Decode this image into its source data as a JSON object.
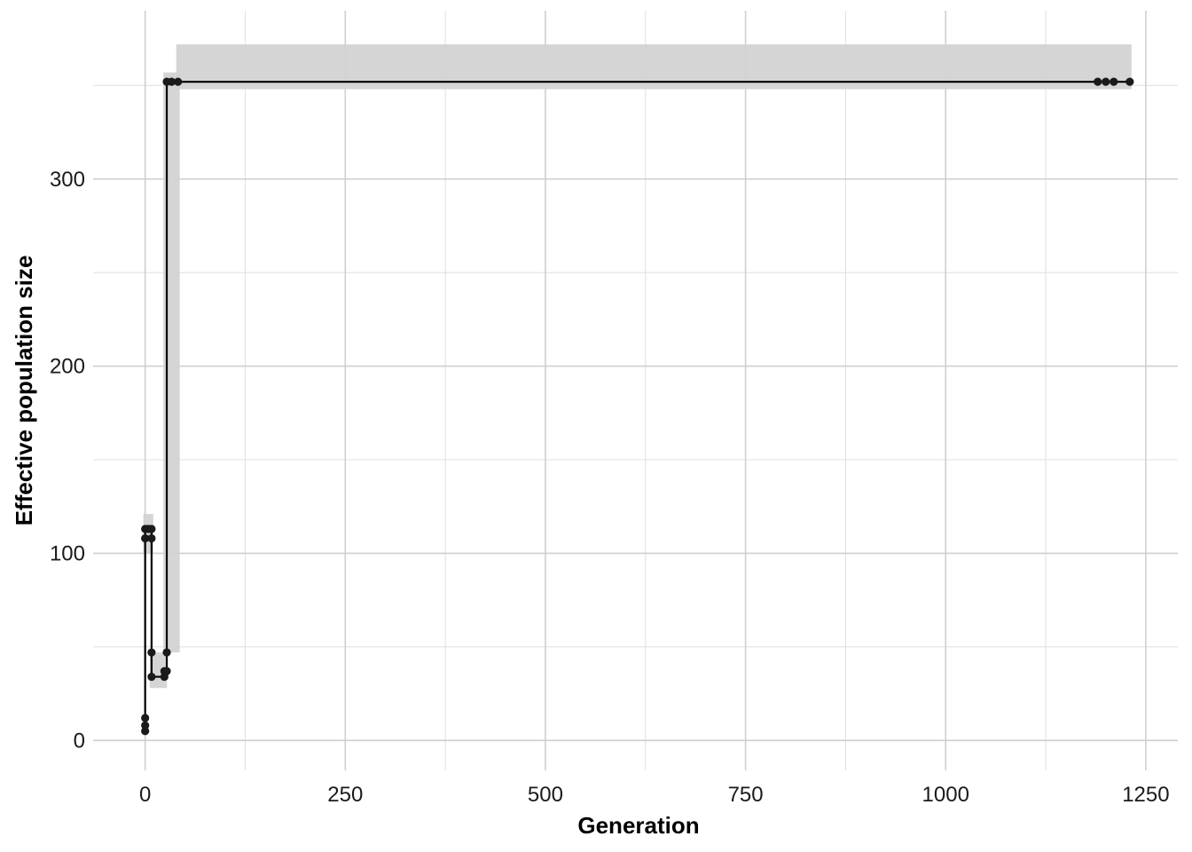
{
  "chart_data": {
    "type": "line",
    "title": "",
    "xlabel": "Generation",
    "ylabel": "Effective population size",
    "xlim": [
      -65,
      1290
    ],
    "ylim": [
      -16,
      390
    ],
    "x_ticks": [
      0,
      250,
      500,
      750,
      1000,
      1250
    ],
    "x_tick_labels": [
      "0",
      "250",
      "500",
      "750",
      "1000",
      "1250"
    ],
    "y_ticks": [
      0,
      100,
      200,
      300
    ],
    "y_tick_labels": [
      "0",
      "100",
      "200",
      "300"
    ],
    "grid": true,
    "legend": "none",
    "colors": {
      "line": "#000000",
      "points": "#1a1a1a",
      "ribbon": "#d3d3d3"
    },
    "ribbon": [
      {
        "x_start": 0,
        "x_end": 8,
        "lower": 100,
        "upper": 121
      },
      {
        "x_start": 8,
        "x_end": 25,
        "lower": 28,
        "upper": 47
      },
      {
        "x_start": 25,
        "x_end": 41,
        "lower": 47,
        "upper": 357
      },
      {
        "x_start": 41,
        "x_end": 1230,
        "lower": 348,
        "upper": 372
      }
    ],
    "series": [
      {
        "points": [
          {
            "x": 0,
            "y": 5
          },
          {
            "x": 0,
            "y": 8
          },
          {
            "x": 0,
            "y": 12
          },
          {
            "x": 0,
            "y": 108
          },
          {
            "x": 0,
            "y": 113
          },
          {
            "x": 4,
            "y": 113
          },
          {
            "x": 8,
            "y": 113
          },
          {
            "x": 8,
            "y": 108
          },
          {
            "x": 8,
            "y": 47
          },
          {
            "x": 8,
            "y": 34
          },
          {
            "x": 24,
            "y": 34
          },
          {
            "x": 24,
            "y": 37
          },
          {
            "x": 27,
            "y": 37
          },
          {
            "x": 27,
            "y": 47
          },
          {
            "x": 27,
            "y": 352
          },
          {
            "x": 33,
            "y": 352
          },
          {
            "x": 41,
            "y": 352
          },
          {
            "x": 1190,
            "y": 352
          },
          {
            "x": 1200,
            "y": 352
          },
          {
            "x": 1210,
            "y": 352
          },
          {
            "x": 1230,
            "y": 352
          }
        ]
      }
    ]
  }
}
